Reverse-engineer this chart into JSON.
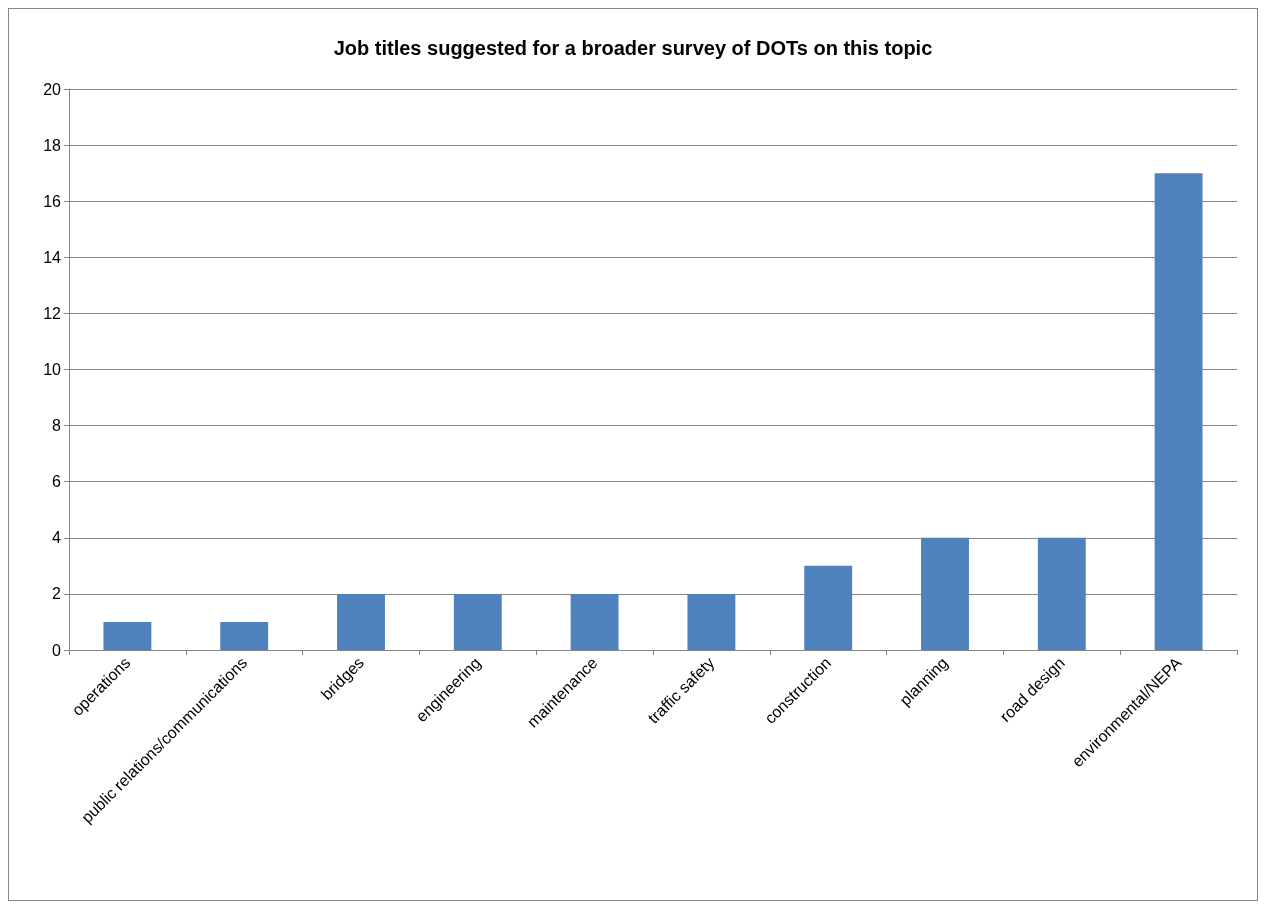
{
  "chart_data": {
    "type": "bar",
    "title": "Job titles suggested for a broader survey of DOTs on this topic",
    "categories": [
      "operations",
      "public relations/communications",
      "bridges",
      "engineering",
      "maintenance",
      "traffic safety",
      "construction",
      "planning",
      "road design",
      "environmental/NEPA"
    ],
    "values": [
      1,
      1,
      2,
      2,
      2,
      2,
      3,
      4,
      4,
      17
    ],
    "color": "#4f81bd",
    "ylim": [
      0,
      20
    ],
    "yticks": [
      0,
      2,
      4,
      6,
      8,
      10,
      12,
      14,
      16,
      18,
      20
    ],
    "grid": "y"
  }
}
